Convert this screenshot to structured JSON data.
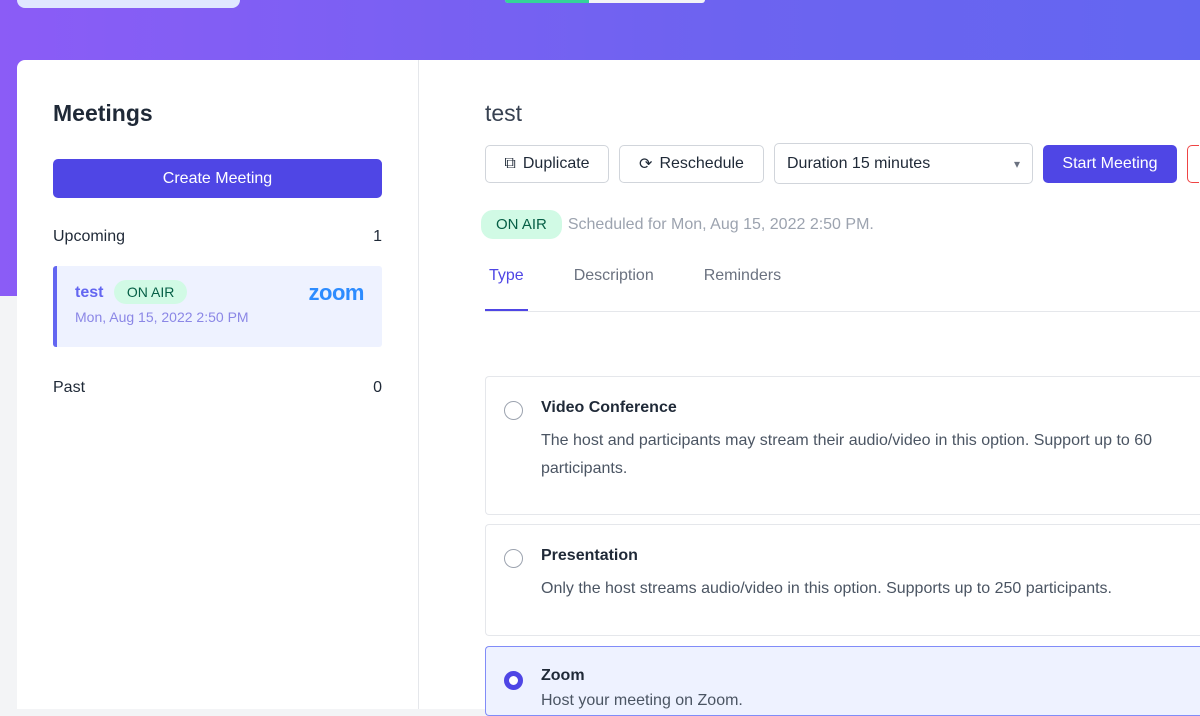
{
  "progress": 0.42,
  "sidebar": {
    "title": "Meetings",
    "create_label": "Create Meeting",
    "upcoming_label": "Upcoming",
    "upcoming_count": "1",
    "past_label": "Past",
    "past_count": "0",
    "meeting": {
      "title": "test",
      "badge": "ON AIR",
      "date": "Mon, Aug 15, 2022 2:50 PM",
      "provider": "zoom"
    }
  },
  "main": {
    "title": "test",
    "duplicate_label": "Duplicate",
    "reschedule_label": "Reschedule",
    "duration_value": "Duration 15 minutes",
    "start_label": "Start Meeting",
    "status_badge": "ON AIR",
    "scheduled_text": "Scheduled for Mon, Aug 15, 2022 2:50 PM.",
    "tabs": [
      {
        "label": "Type"
      },
      {
        "label": "Description"
      },
      {
        "label": "Reminders"
      }
    ],
    "options": [
      {
        "title": "Video Conference",
        "desc": "The host and participants may stream their audio/video in this option. Support up to 60 participants.",
        "selected": false
      },
      {
        "title": "Presentation",
        "desc": "Only the host streams audio/video in this option. Supports up to 250 participants.",
        "selected": false
      },
      {
        "title": "Zoom",
        "desc": "Host your meeting on Zoom.",
        "selected": true
      }
    ]
  },
  "colors": {
    "accent": "#4f46e5",
    "on_air_bg": "#d1fae5",
    "zoom_blue": "#2d8cff"
  }
}
